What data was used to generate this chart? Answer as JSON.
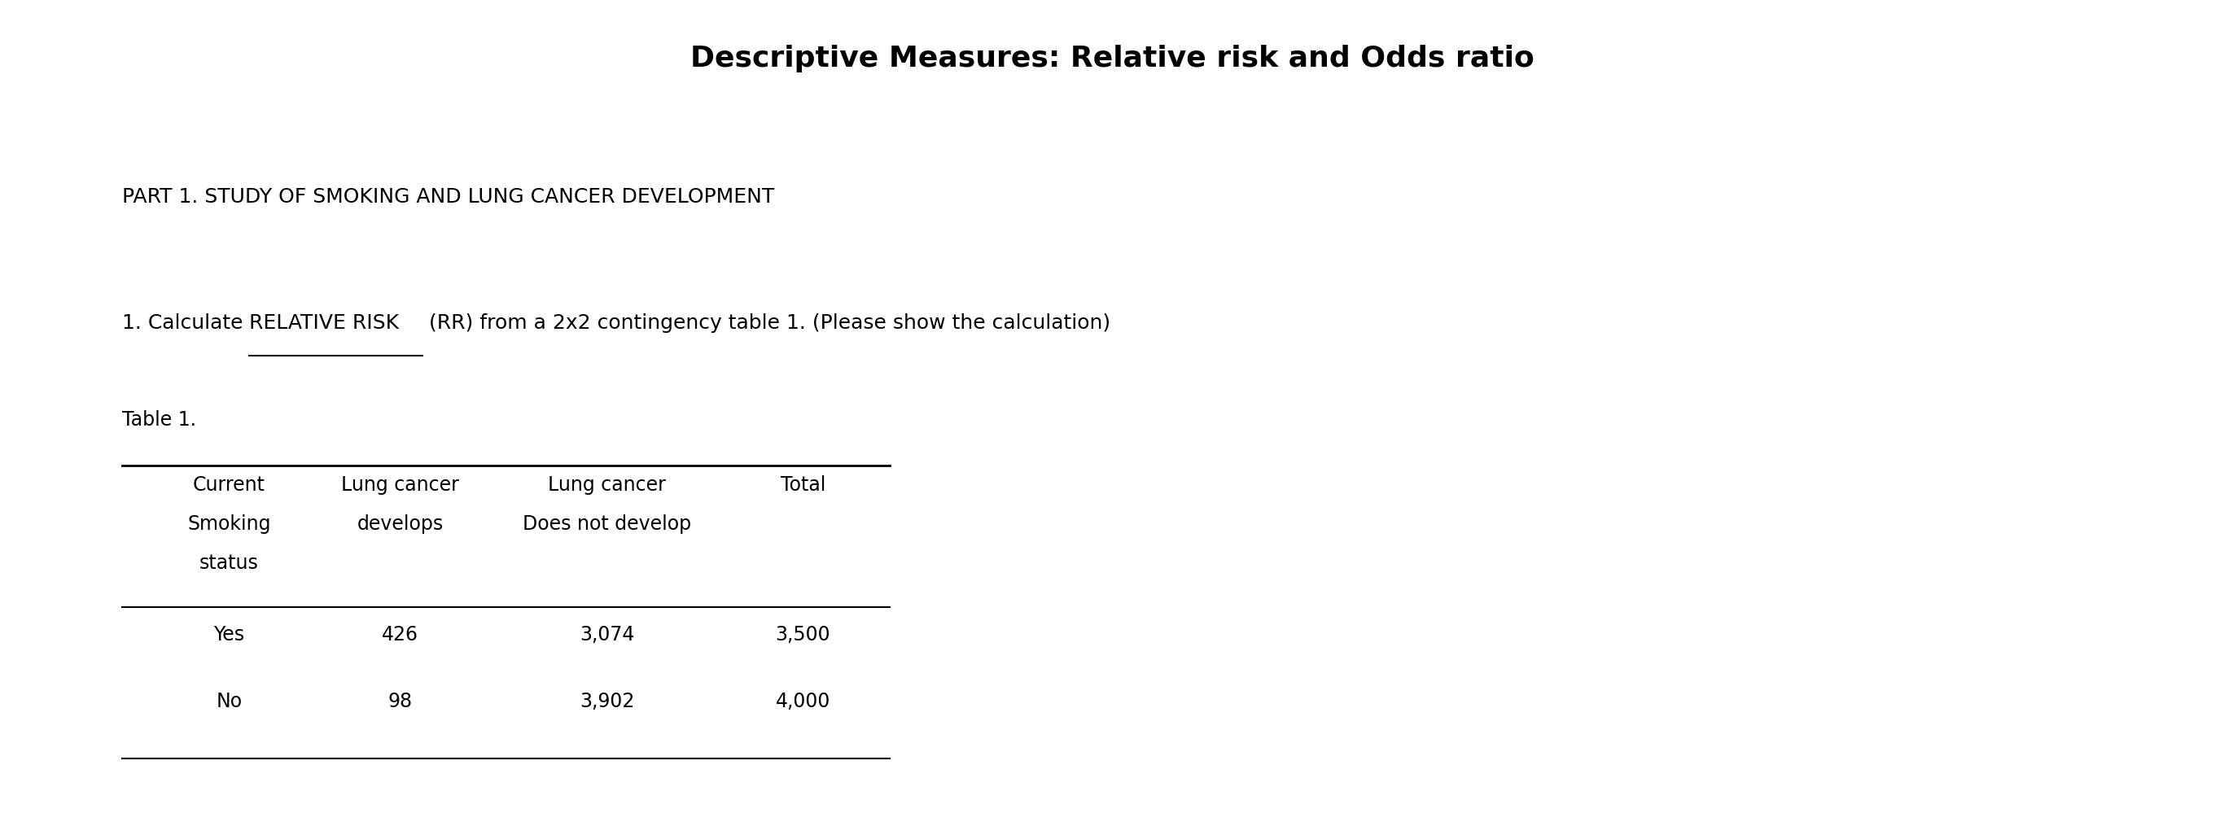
{
  "title": "Descriptive Measures: Relative risk and Odds ratio",
  "part_text": "PART 1. STUDY OF SMOKING AND LUNG CANCER DEVELOPMENT",
  "q_prefix": "1. Calculate ",
  "q_underlined": "RELATIVE RISK",
  "q_suffix": " (RR) from a 2x2 contingency table 1. (Please show the calculation)",
  "table_label": "Table 1.",
  "col_headers": [
    "Current\nSmoking\nstatus",
    "Lung cancer\ndevelops",
    "Lung cancer\nDoes not develop",
    "Total"
  ],
  "rows": [
    [
      "Yes",
      "426",
      "3,074",
      "3,500"
    ],
    [
      "No",
      "98",
      "3,902",
      "4,000"
    ]
  ],
  "background_color": "#ffffff",
  "text_color": "#000000",
  "title_fontsize": 26,
  "body_fontsize": 18,
  "table_fontsize": 17
}
